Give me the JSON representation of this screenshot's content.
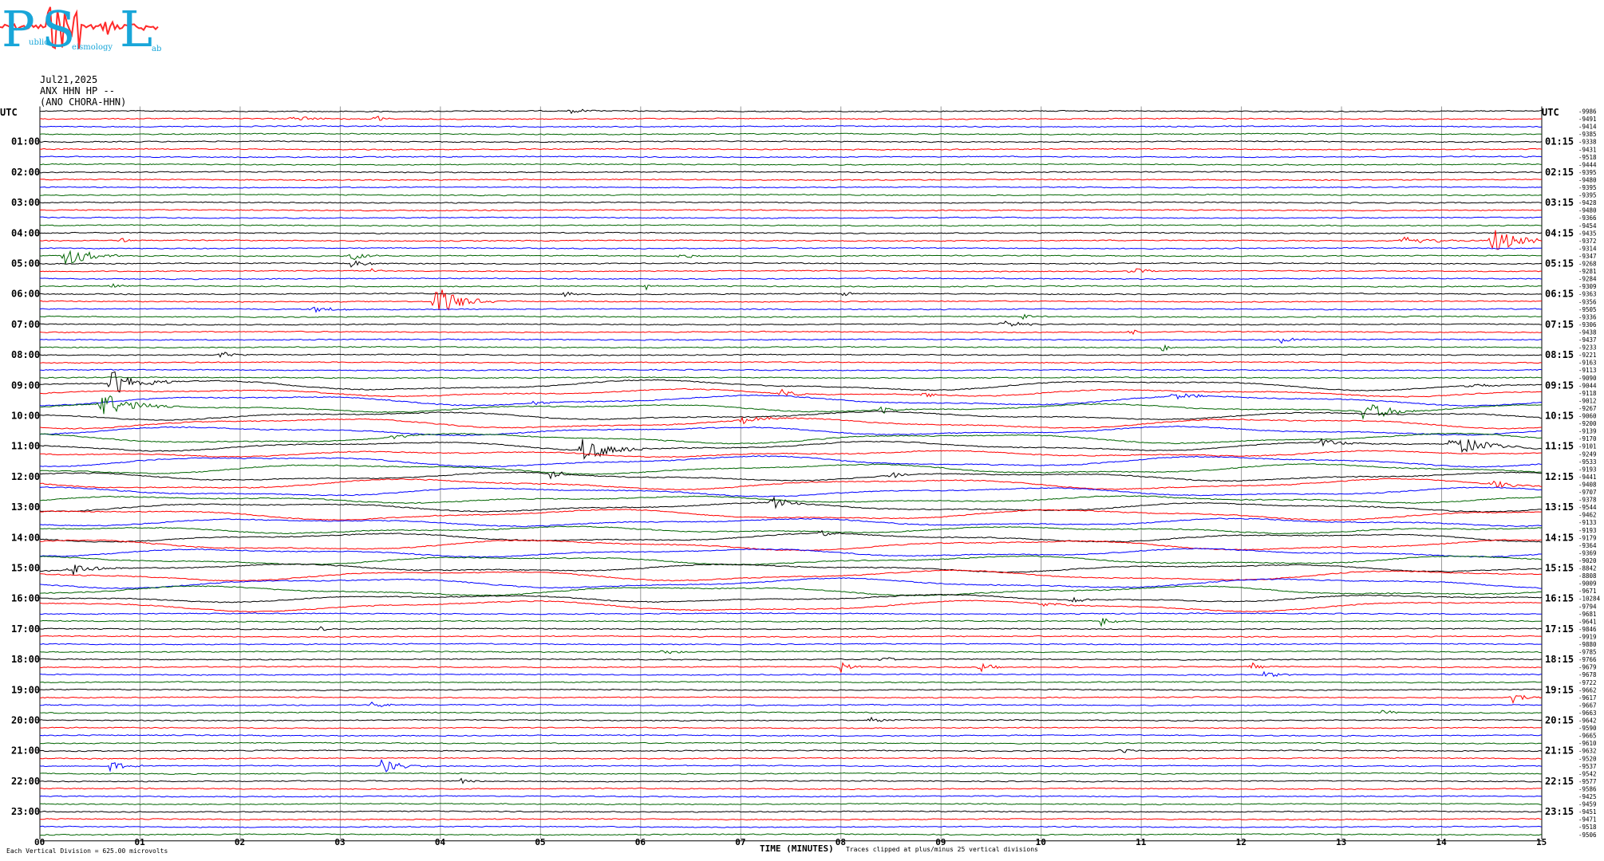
{
  "logo": {
    "letters": [
      "P",
      "S",
      "L"
    ],
    "words": [
      "ublic",
      "eismology",
      "ab"
    ]
  },
  "header": {
    "date": "Jul21,2025",
    "station": "ANX HHN HP --",
    "network": "(ANO CHORA-HHN)",
    "utc_left": "UTC",
    "utc_right": "UTC"
  },
  "footer": {
    "division_note": "Each Vertical Division = 625.00 microvolts",
    "xlabel": "TIME (MINUTES)",
    "clip_note": "Traces clipped at plus/minus 25 vertical divisions"
  },
  "colors": {
    "traces": [
      "#000000",
      "#ff0000",
      "#0000ff",
      "#006400"
    ],
    "grid": "#9a9a9a",
    "logo": "#19a6d9",
    "logo_wave": "#ff2a2a"
  },
  "chart_data": {
    "type": "line",
    "title": "",
    "xlabel": "TIME (MINUTES)",
    "ylabel": "UTC",
    "xlim": [
      0,
      15
    ],
    "x_ticks": [
      "00",
      "01",
      "02",
      "03",
      "04",
      "05",
      "06",
      "07",
      "08",
      "09",
      "10",
      "11",
      "12",
      "13",
      "14",
      "15"
    ],
    "left_hour_labels": [
      "01:00",
      "02:00",
      "03:00",
      "04:00",
      "05:00",
      "06:00",
      "07:00",
      "08:00",
      "09:00",
      "10:00",
      "11:00",
      "12:00",
      "13:00",
      "14:00",
      "15:00",
      "16:00",
      "17:00",
      "18:00",
      "19:00",
      "20:00",
      "21:00",
      "22:00",
      "23:00"
    ],
    "right_hour_labels": [
      "01:15",
      "02:15",
      "03:15",
      "04:15",
      "05:15",
      "06:15",
      "07:15",
      "08:15",
      "09:15",
      "10:15",
      "11:15",
      "12:15",
      "13:15",
      "14:15",
      "15:15",
      "16:15",
      "17:15",
      "18:15",
      "19:15",
      "20:15",
      "21:15",
      "22:15",
      "23:15"
    ],
    "line_means": [
      -9986,
      -9491,
      -9414,
      -9385,
      -9338,
      -9431,
      -9518,
      -9444,
      -9395,
      -9480,
      -9395,
      -9395,
      -9428,
      -9480,
      -9366,
      -9454,
      -9435,
      -9372,
      -9314,
      -9347,
      -9268,
      -9281,
      -9284,
      -9309,
      -9363,
      -9356,
      -9505,
      -9336,
      -9306,
      -9438,
      -9437,
      -9233,
      -9221,
      -9163,
      -9113,
      -9090,
      -9044,
      -9118,
      -9012,
      -9267,
      -9060,
      -9200,
      -9139,
      -9170,
      -9101,
      -9249,
      -9533,
      -9193,
      -9441,
      -9408,
      -9707,
      -9378,
      -9544,
      -9462,
      -9133,
      -9193,
      -9179,
      -9364,
      -9369,
      -9020,
      -8842,
      -8808,
      -9009,
      -9671,
      -10284,
      -9794,
      -9681,
      -9641,
      -9846,
      -9919,
      -9880,
      -9785,
      -9766,
      -9679,
      -9678,
      -9722,
      -9662,
      -9617,
      -9667,
      -9663,
      -9642,
      -9590,
      -9665,
      -9610,
      -9632,
      -9520,
      -9537,
      -9542,
      -9577,
      -9586,
      -9425,
      -9459,
      -9451,
      -9471,
      -9518,
      -9506
    ],
    "trace_colors_cycle": [
      "black",
      "red",
      "blue",
      "green"
    ],
    "events": [
      {
        "line": 0,
        "minute": 5.3,
        "amp": 1.2,
        "dur": 0.4
      },
      {
        "line": 1,
        "minute": 2.5,
        "amp": 1.1,
        "dur": 0.8
      },
      {
        "line": 1,
        "minute": 3.35,
        "amp": 1.4,
        "dur": 0.3
      },
      {
        "line": 17,
        "minute": 0.8,
        "amp": 1.3,
        "dur": 0.3
      },
      {
        "line": 17,
        "minute": 14.5,
        "amp": 5.5,
        "dur": 0.7
      },
      {
        "line": 17,
        "minute": 13.6,
        "amp": 2.0,
        "dur": 0.9
      },
      {
        "line": 19,
        "minute": 0.25,
        "amp": 5.0,
        "dur": 0.6
      },
      {
        "line": 19,
        "minute": 3.1,
        "amp": 2.2,
        "dur": 0.4
      },
      {
        "line": 19,
        "minute": 6.4,
        "amp": 1.5,
        "dur": 0.3
      },
      {
        "line": 20,
        "minute": 3.1,
        "amp": 2.0,
        "dur": 0.4
      },
      {
        "line": 21,
        "minute": 3.3,
        "amp": 1.5,
        "dur": 0.3
      },
      {
        "line": 21,
        "minute": 10.9,
        "amp": 1.6,
        "dur": 0.4
      },
      {
        "line": 23,
        "minute": 0.7,
        "amp": 1.8,
        "dur": 0.2
      },
      {
        "line": 23,
        "minute": 6.05,
        "amp": 1.8,
        "dur": 0.3
      },
      {
        "line": 24,
        "minute": 5.2,
        "amp": 1.4,
        "dur": 0.3
      },
      {
        "line": 24,
        "minute": 8.0,
        "amp": 1.3,
        "dur": 0.3
      },
      {
        "line": 25,
        "minute": 3.95,
        "amp": 7.5,
        "dur": 0.6
      },
      {
        "line": 26,
        "minute": 2.7,
        "amp": 1.4,
        "dur": 0.6
      },
      {
        "line": 27,
        "minute": 9.8,
        "amp": 1.4,
        "dur": 0.3
      },
      {
        "line": 28,
        "minute": 9.6,
        "amp": 1.8,
        "dur": 0.6
      },
      {
        "line": 29,
        "minute": 10.9,
        "amp": 1.5,
        "dur": 0.2
      },
      {
        "line": 30,
        "minute": 12.4,
        "amp": 2.0,
        "dur": 0.3
      },
      {
        "line": 31,
        "minute": 11.2,
        "amp": 1.8,
        "dur": 0.4
      },
      {
        "line": 32,
        "minute": 1.8,
        "amp": 1.6,
        "dur": 0.4
      },
      {
        "line": 36,
        "minute": 0.7,
        "amp": 6.0,
        "dur": 0.7
      },
      {
        "line": 36,
        "minute": 14.2,
        "amp": 1.8,
        "dur": 0.5
      },
      {
        "line": 37,
        "minute": 7.4,
        "amp": 1.8,
        "dur": 0.5
      },
      {
        "line": 37,
        "minute": 8.8,
        "amp": 1.5,
        "dur": 0.4
      },
      {
        "line": 38,
        "minute": 4.9,
        "amp": 1.2,
        "dur": 0.4
      },
      {
        "line": 38,
        "minute": 11.3,
        "amp": 1.4,
        "dur": 0.8
      },
      {
        "line": 39,
        "minute": 0.6,
        "amp": 6.0,
        "dur": 0.8
      },
      {
        "line": 39,
        "minute": 8.4,
        "amp": 2.5,
        "dur": 0.3
      },
      {
        "line": 39,
        "minute": 13.2,
        "amp": 5.0,
        "dur": 0.7
      },
      {
        "line": 41,
        "minute": 7.0,
        "amp": 1.8,
        "dur": 0.6
      },
      {
        "line": 43,
        "minute": 3.5,
        "amp": 1.5,
        "dur": 0.4
      },
      {
        "line": 44,
        "minute": 5.4,
        "amp": 5.0,
        "dur": 0.8
      },
      {
        "line": 44,
        "minute": 14.1,
        "amp": 5.5,
        "dur": 0.7
      },
      {
        "line": 44,
        "minute": 12.8,
        "amp": 1.6,
        "dur": 0.6
      },
      {
        "line": 48,
        "minute": 5.1,
        "amp": 2.5,
        "dur": 0.3
      },
      {
        "line": 48,
        "minute": 8.5,
        "amp": 1.6,
        "dur": 0.3
      },
      {
        "line": 49,
        "minute": 14.5,
        "amp": 2.0,
        "dur": 0.5
      },
      {
        "line": 52,
        "minute": 7.3,
        "amp": 3.0,
        "dur": 0.5
      },
      {
        "line": 56,
        "minute": 7.8,
        "amp": 1.8,
        "dur": 0.3
      },
      {
        "line": 60,
        "minute": 0.3,
        "amp": 3.0,
        "dur": 0.6
      },
      {
        "line": 64,
        "minute": 10.3,
        "amp": 2.0,
        "dur": 0.3
      },
      {
        "line": 65,
        "minute": 10.0,
        "amp": 1.5,
        "dur": 0.4
      },
      {
        "line": 67,
        "minute": 10.6,
        "amp": 2.0,
        "dur": 0.3
      },
      {
        "line": 68,
        "minute": 2.8,
        "amp": 1.4,
        "dur": 0.2
      },
      {
        "line": 71,
        "minute": 6.2,
        "amp": 1.3,
        "dur": 0.4
      },
      {
        "line": 72,
        "minute": 8.4,
        "amp": 1.8,
        "dur": 0.3
      },
      {
        "line": 73,
        "minute": 8.0,
        "amp": 2.5,
        "dur": 0.3
      },
      {
        "line": 73,
        "minute": 9.4,
        "amp": 2.0,
        "dur": 0.3
      },
      {
        "line": 73,
        "minute": 12.1,
        "amp": 2.0,
        "dur": 0.3
      },
      {
        "line": 74,
        "minute": 12.2,
        "amp": 1.6,
        "dur": 0.4
      },
      {
        "line": 77,
        "minute": 14.7,
        "amp": 2.5,
        "dur": 0.4
      },
      {
        "line": 78,
        "minute": 3.3,
        "amp": 1.5,
        "dur": 0.4
      },
      {
        "line": 79,
        "minute": 13.4,
        "amp": 1.3,
        "dur": 0.3
      },
      {
        "line": 80,
        "minute": 8.3,
        "amp": 1.6,
        "dur": 0.4
      },
      {
        "line": 84,
        "minute": 10.8,
        "amp": 1.6,
        "dur": 0.3
      },
      {
        "line": 86,
        "minute": 0.7,
        "amp": 2.2,
        "dur": 0.4
      },
      {
        "line": 86,
        "minute": 3.4,
        "amp": 3.5,
        "dur": 0.5
      },
      {
        "line": 88,
        "minute": 4.2,
        "amp": 1.3,
        "dur": 0.3
      }
    ],
    "wander_lines": [
      36,
      37,
      38,
      39,
      40,
      41,
      42,
      43,
      44,
      45,
      46,
      47,
      48,
      49,
      50,
      51,
      52,
      53,
      54,
      55,
      56,
      57,
      58,
      59,
      60,
      61,
      62,
      63,
      64,
      65
    ],
    "grid": true
  }
}
